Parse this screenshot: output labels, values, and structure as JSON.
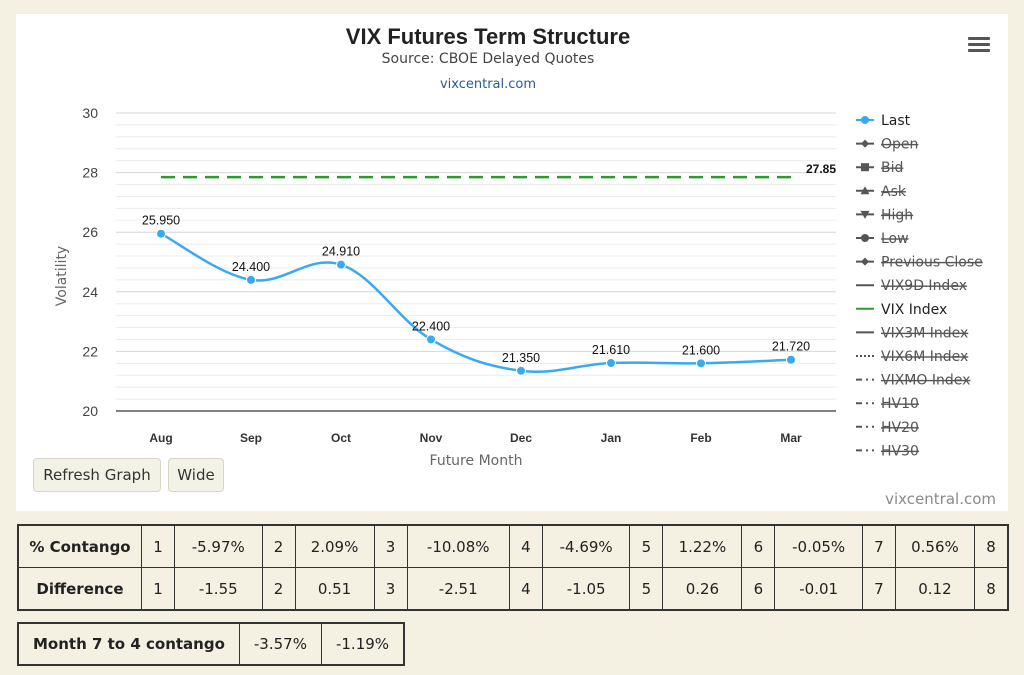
{
  "chart": {
    "title": "VIX Futures Term Structure",
    "subtitle": "Source: CBOE Delayed Quotes",
    "link": "vixcentral.com",
    "credit": "vixcentral.com",
    "menu_icon": "hamburger-menu-icon"
  },
  "chart_data": {
    "type": "line",
    "title": "VIX Futures Term Structure",
    "subtitle": "Source: CBOE Delayed Quotes",
    "xlabel": "Future Month",
    "ylabel": "Volatility",
    "categories": [
      "Aug",
      "Sep",
      "Oct",
      "Nov",
      "Dec",
      "Jan",
      "Feb",
      "Mar"
    ],
    "ylim": [
      20,
      30
    ],
    "yticks": [
      20,
      22,
      24,
      26,
      28,
      30
    ],
    "grid": true,
    "legend_position": "right",
    "series": [
      {
        "name": "Last",
        "color": "#3aaaf0",
        "style": "smooth-line-with-markers",
        "values": [
          25.95,
          24.4,
          24.91,
          22.4,
          21.35,
          21.61,
          21.6,
          21.72
        ],
        "data_labels": [
          "25.950",
          "24.400",
          "24.910",
          "22.400",
          "21.350",
          "21.610",
          "21.600",
          "21.720"
        ]
      },
      {
        "name": "VIX Index",
        "color": "#2e9a2e",
        "style": "dashed",
        "value": 27.85,
        "label": "27.85"
      }
    ],
    "legend": [
      {
        "name": "Last",
        "enabled": true,
        "symbol": "circle-line",
        "color": "#3aaaf0"
      },
      {
        "name": "Open",
        "enabled": false,
        "symbol": "diamond-line",
        "color": "#555555"
      },
      {
        "name": "Bid",
        "enabled": false,
        "symbol": "square-line",
        "color": "#555555"
      },
      {
        "name": "Ask",
        "enabled": false,
        "symbol": "triangle-line",
        "color": "#555555"
      },
      {
        "name": "High",
        "enabled": false,
        "symbol": "triangle-down-line",
        "color": "#555555"
      },
      {
        "name": "Low",
        "enabled": false,
        "symbol": "circle-line",
        "color": "#555555"
      },
      {
        "name": "Previous Close",
        "enabled": false,
        "symbol": "diamond-line",
        "color": "#555555"
      },
      {
        "name": "VIX9D Index",
        "enabled": false,
        "symbol": "solid-line",
        "color": "#555555"
      },
      {
        "name": "VIX Index",
        "enabled": true,
        "symbol": "solid-line",
        "color": "#2e9a2e"
      },
      {
        "name": "VIX3M Index",
        "enabled": false,
        "symbol": "solid-line",
        "color": "#555555"
      },
      {
        "name": "VIX6M Index",
        "enabled": false,
        "symbol": "dotted-line",
        "color": "#555555"
      },
      {
        "name": "VIXMO Index",
        "enabled": false,
        "symbol": "dash-dot-line",
        "color": "#555555"
      },
      {
        "name": "HV10",
        "enabled": false,
        "symbol": "dash-dot-line",
        "color": "#555555"
      },
      {
        "name": "HV20",
        "enabled": false,
        "symbol": "dash-dot-line",
        "color": "#555555"
      },
      {
        "name": "HV30",
        "enabled": false,
        "symbol": "dash-dot-line",
        "color": "#555555"
      }
    ]
  },
  "buttons": {
    "refresh": "Refresh Graph",
    "wide": "Wide"
  },
  "stats": {
    "rows": [
      {
        "label": "% Contango",
        "cells": [
          [
            "1",
            "-5.97%"
          ],
          [
            "2",
            "2.09%"
          ],
          [
            "3",
            "-10.08%"
          ],
          [
            "4",
            "-4.69%"
          ],
          [
            "5",
            "1.22%"
          ],
          [
            "6",
            "-0.05%"
          ],
          [
            "7",
            "0.56%"
          ]
        ],
        "last": "8"
      },
      {
        "label": "Difference",
        "cells": [
          [
            "1",
            "-1.55"
          ],
          [
            "2",
            "0.51"
          ],
          [
            "3",
            "-2.51"
          ],
          [
            "4",
            "-1.05"
          ],
          [
            "5",
            "0.26"
          ],
          [
            "6",
            "-0.01"
          ],
          [
            "7",
            "0.12"
          ]
        ],
        "last": "8"
      }
    ]
  },
  "month_contango": {
    "label": "Month 7 to 4 contango",
    "values": [
      "-3.57%",
      "-1.19%"
    ]
  }
}
